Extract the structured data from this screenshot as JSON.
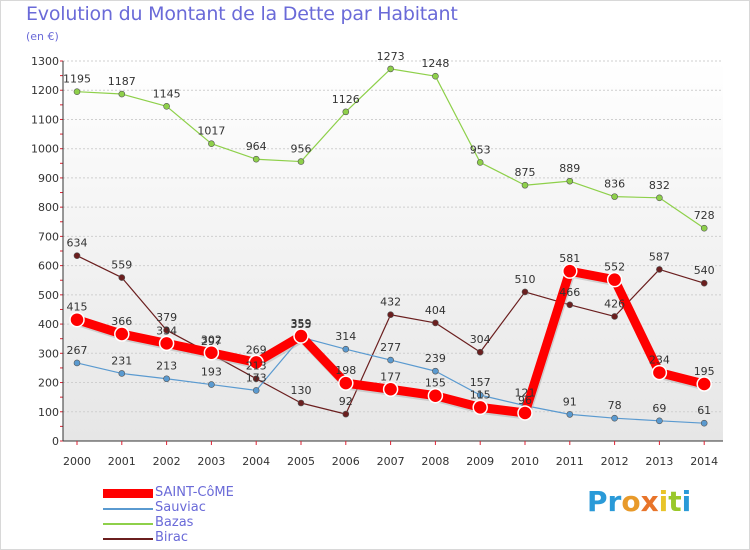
{
  "header": {
    "title": "Evolution du Montant de la Dette par Habitant",
    "unit": "(en €)"
  },
  "logo": {
    "text": "Proxiti",
    "letters": [
      "P",
      "r",
      "o",
      "x",
      "i",
      "t",
      "i"
    ],
    "colors": [
      "#2a9ad8",
      "#2a9ad8",
      "#e89a2a",
      "#e8742a",
      "#e8c42a",
      "#9ac82a",
      "#2a9ad8"
    ]
  },
  "chart_data": {
    "type": "line",
    "title": "Evolution du Montant de la Dette par Habitant",
    "subtitle": "(en €)",
    "x": [
      "2000",
      "2001",
      "2002",
      "2003",
      "2004",
      "2005",
      "2006",
      "2007",
      "2008",
      "2009",
      "2010",
      "2011",
      "2012",
      "2013",
      "2014"
    ],
    "ylim": [
      0,
      1300
    ],
    "yticks": [
      0,
      100,
      200,
      300,
      400,
      500,
      600,
      700,
      800,
      900,
      1000,
      1100,
      1200,
      1300
    ],
    "grid": "horizontal",
    "legend_position": "bottom-left",
    "series": [
      {
        "name": "SAINT-CôME",
        "color": "#ff0000",
        "values": [
          415,
          366,
          334,
          302,
          269,
          359,
          198,
          177,
          155,
          115,
          96,
          581,
          552,
          234,
          195
        ],
        "labels": [
          "415",
          "366",
          "334",
          "302",
          "269",
          "359",
          "198",
          "177",
          "155",
          "115",
          "96",
          "581",
          "552",
          "234",
          "195"
        ]
      },
      {
        "name": "Sauviac",
        "color": "#5a9ad0",
        "values": [
          267,
          231,
          213,
          193,
          173,
          355,
          314,
          277,
          239,
          157,
          121,
          91,
          78,
          69,
          61
        ],
        "labels": [
          "267",
          "231",
          "213",
          "193",
          "173",
          "355",
          "314",
          "277",
          "239",
          "157",
          "121",
          "91",
          "78",
          "69",
          "61"
        ]
      },
      {
        "name": "Bazas",
        "color": "#8ed04a",
        "values": [
          1195,
          1187,
          1145,
          1017,
          964,
          956,
          1126,
          1273,
          1248,
          953,
          875,
          889,
          836,
          832,
          728
        ],
        "labels": [
          "1195",
          "1187",
          "1145",
          "1017",
          "964",
          "956",
          "1126",
          "1273",
          "1248",
          "953",
          "875",
          "889",
          "836",
          "832",
          "728"
        ]
      },
      {
        "name": "Birac",
        "color": "#6b1f1f",
        "values": [
          634,
          559,
          379,
          297,
          213,
          130,
          92,
          432,
          404,
          304,
          510,
          466,
          426,
          587,
          540
        ],
        "labels": [
          "634",
          "559",
          "379",
          "297",
          "213",
          "130",
          "92",
          "432",
          "404",
          "304",
          "510",
          "466",
          "426",
          "587",
          "540"
        ]
      }
    ]
  }
}
